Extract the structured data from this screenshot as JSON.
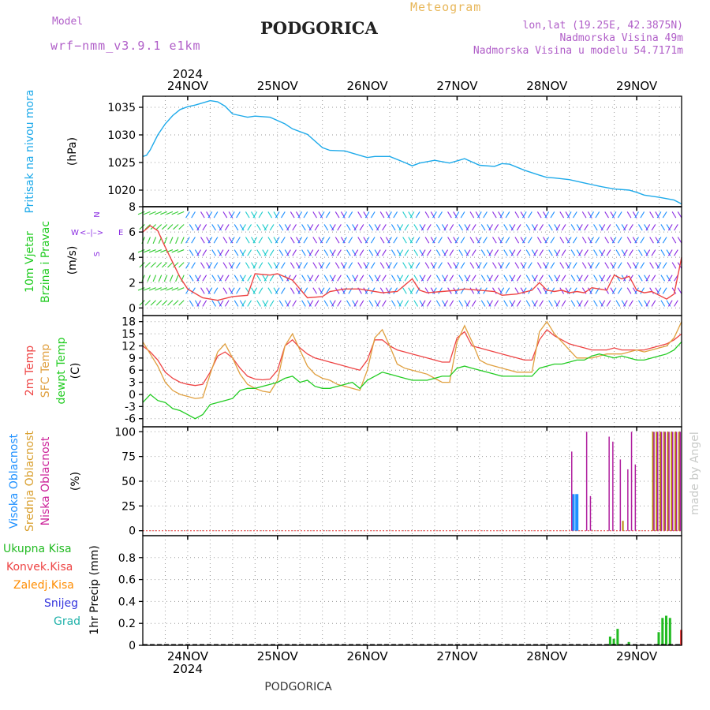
{
  "header": {
    "model_label": "Model",
    "model_name": "wrf−nmm_v3.9.1  e1km",
    "title": "PODGORICA",
    "product": "Meteogram",
    "lonlat": "lon,lat (19.25E, 42.3875N)",
    "altitude": "Nadmorska Visina 49m",
    "model_altitude": "Nadmorska Visina u modelu 54.7171m",
    "footer_station": "PODGORICA",
    "watermark": "made by Angel",
    "year_top": "2024",
    "year_bottom": "2024"
  },
  "colors": {
    "pressure": "#1eaaea",
    "temp2m": "#ee4444",
    "sfc": "#e0a040",
    "dew": "#22cc22",
    "cloud_high": "#1e90ff",
    "cloud_mid": "#b8860b",
    "cloud_low": "#b0209f",
    "precip_total": "#22bb22",
    "precip_conv": "#ee4444",
    "precip_frz": "#ff8c00",
    "snow": "#3333dd",
    "hail": "#20b2aa",
    "wind_purple": "#8a2be2",
    "wind_blue": "#1e8fff",
    "wind_cyan": "#1ccccc"
  },
  "days": [
    "24NOV",
    "25NOV",
    "26NOV",
    "27NOV",
    "28NOV",
    "29NOV"
  ],
  "panel_labels": {
    "pressure": [
      "Pritisak na nivou mora"
    ],
    "pressure_unit": "(hPa)",
    "wind": [
      "10m Vjetar",
      "Brzina i Pravac"
    ],
    "wind_unit": "(m/s)",
    "wind_compass": {
      "n": "N",
      "s": "S",
      "e": "E",
      "w": "W",
      "arrow": "<–|–>"
    },
    "temp": [
      "2m Temp",
      "SFC Temp",
      "dewpt Temp"
    ],
    "temp_unit": "(C)",
    "cloud": [
      "Visoka Oblacnost",
      "Srednja Oblacnost",
      "Niska Oblacnost"
    ],
    "cloud_unit": "(%)",
    "precip_legend": [
      "Ukupna Kisa",
      "Konvek.Kisa",
      "Zaledj.Kisa",
      "Snijeg",
      "Grad"
    ],
    "precip_unit": "1hr Precip (mm)"
  },
  "chart_data": [
    {
      "type": "line",
      "name": "pressure",
      "ylim": [
        1017,
        1037
      ],
      "yticks": [
        1020,
        1025,
        1030,
        1035
      ],
      "xlim": [
        0,
        144
      ],
      "series": [
        {
          "name": "Pritisak na nivou mora",
          "x": [
            0,
            1,
            2,
            4,
            6,
            8,
            10,
            12,
            14,
            16,
            18,
            20,
            22,
            24,
            26,
            28,
            30,
            34,
            38,
            40,
            44,
            48,
            50,
            54,
            58,
            60,
            62,
            66,
            70,
            72,
            74,
            78,
            82,
            84,
            86,
            90,
            94,
            96,
            98,
            102,
            106,
            108,
            110,
            114,
            118,
            120,
            122,
            126,
            130,
            132,
            134,
            138,
            142,
            144
          ],
          "y": [
            1026.1,
            1026.3,
            1027.3,
            1030,
            1032,
            1033.5,
            1034.6,
            1035.1,
            1035.4,
            1035.8,
            1036.2,
            1036.0,
            1035.2,
            1033.8,
            1033.5,
            1033.2,
            1033.4,
            1033.2,
            1032.0,
            1031.1,
            1030.1,
            1027.7,
            1027.2,
            1027.1,
            1026.3,
            1025.9,
            1026.1,
            1026.1,
            1025.0,
            1024.4,
            1024.9,
            1025.4,
            1024.9,
            1025.3,
            1025.7,
            1024.5,
            1024.3,
            1024.8,
            1024.7,
            1023.6,
            1022.7,
            1022.3,
            1022.2,
            1021.9,
            1021.3,
            1021.0,
            1020.7,
            1020.2,
            1020.0,
            1019.6,
            1019.1,
            1018.7,
            1018.2,
            1017.5
          ]
        }
      ]
    },
    {
      "type": "line",
      "name": "wind",
      "ylim": [
        -0.6,
        8
      ],
      "yticks": [
        0,
        2,
        4,
        6,
        8
      ],
      "xlim": [
        0,
        144
      ],
      "series": [
        {
          "name": "10m Vjetar",
          "x": [
            0,
            2,
            4,
            6,
            8,
            10,
            12,
            16,
            20,
            24,
            28,
            30,
            34,
            36,
            40,
            44,
            48,
            50,
            54,
            58,
            60,
            64,
            68,
            72,
            74,
            76,
            80,
            84,
            86,
            90,
            94,
            96,
            100,
            104,
            106,
            108,
            110,
            112,
            114,
            116,
            118,
            120,
            122,
            124,
            126,
            128,
            130,
            132,
            134,
            136,
            138,
            140,
            142,
            144
          ],
          "y": [
            6.0,
            6.5,
            6.1,
            4.8,
            3.6,
            2.4,
            1.5,
            0.8,
            0.6,
            0.9,
            1.0,
            2.7,
            2.6,
            2.7,
            2.2,
            0.8,
            0.9,
            1.3,
            1.5,
            1.5,
            1.4,
            1.2,
            1.3,
            2.3,
            1.4,
            1.2,
            1.3,
            1.4,
            1.5,
            1.4,
            1.3,
            1.0,
            1.1,
            1.4,
            2.0,
            1.4,
            1.3,
            1.4,
            1.2,
            1.3,
            1.2,
            1.6,
            1.5,
            1.4,
            2.6,
            2.3,
            2.5,
            1.4,
            1.2,
            1.3,
            1.0,
            0.7,
            1.1,
            4.0
          ]
        }
      ]
    },
    {
      "type": "line",
      "name": "temperature",
      "ylim": [
        -8,
        19.5
      ],
      "yticks": [
        -6,
        -3,
        0,
        3,
        6,
        9,
        12,
        15,
        18
      ],
      "xlim": [
        0,
        144
      ],
      "series": [
        {
          "name": "2m Temp",
          "x": [
            0,
            2,
            4,
            6,
            8,
            10,
            12,
            14,
            16,
            18,
            20,
            22,
            24,
            26,
            28,
            30,
            32,
            34,
            36,
            38,
            40,
            42,
            44,
            46,
            48,
            50,
            52,
            54,
            56,
            58,
            60,
            62,
            64,
            66,
            68,
            70,
            72,
            74,
            76,
            78,
            80,
            82,
            84,
            86,
            88,
            90,
            92,
            94,
            96,
            98,
            100,
            102,
            104,
            106,
            108,
            110,
            112,
            114,
            116,
            118,
            120,
            122,
            124,
            126,
            128,
            130,
            132,
            134,
            136,
            138,
            140,
            142,
            144
          ],
          "y": [
            12.0,
            10.5,
            8.5,
            5.5,
            4.0,
            3.0,
            2.5,
            2.2,
            2.5,
            5.5,
            9.5,
            10.5,
            9.0,
            6.5,
            4.5,
            3.8,
            3.6,
            3.8,
            6.0,
            12.0,
            13.5,
            11.5,
            10.0,
            9.0,
            8.5,
            8.0,
            7.5,
            7.0,
            6.5,
            6.0,
            8.5,
            13.5,
            13.5,
            12.0,
            11.0,
            10.5,
            10.0,
            9.5,
            9.0,
            8.5,
            8.0,
            8.0,
            14.0,
            15.5,
            12.0,
            11.5,
            11.0,
            10.5,
            10.0,
            9.5,
            9.0,
            8.5,
            8.5,
            13.5,
            16.0,
            14.5,
            13.5,
            12.5,
            12.0,
            11.5,
            11.0,
            11.0,
            11.0,
            11.5,
            11.0,
            11.0,
            11.0,
            11.0,
            11.5,
            12.0,
            12.5,
            13.5,
            15.0
          ]
        },
        {
          "name": "SFC Temp",
          "x": [
            0,
            2,
            4,
            6,
            8,
            10,
            12,
            14,
            16,
            18,
            20,
            22,
            24,
            26,
            28,
            30,
            32,
            34,
            36,
            38,
            40,
            42,
            44,
            46,
            48,
            50,
            52,
            54,
            56,
            58,
            60,
            62,
            64,
            66,
            68,
            70,
            72,
            74,
            76,
            78,
            80,
            82,
            84,
            86,
            88,
            90,
            92,
            94,
            96,
            98,
            100,
            102,
            104,
            106,
            108,
            110,
            112,
            114,
            116,
            118,
            120,
            122,
            124,
            126,
            128,
            130,
            132,
            134,
            136,
            138,
            140,
            142,
            144
          ],
          "y": [
            13.0,
            10.0,
            7.0,
            3.0,
            1.0,
            0.0,
            -0.5,
            -1.0,
            -0.8,
            5.0,
            10.5,
            12.5,
            9.0,
            5.0,
            2.5,
            1.5,
            0.8,
            0.5,
            3.5,
            12.0,
            15.0,
            11.0,
            7.0,
            5.0,
            4.0,
            3.5,
            2.5,
            2.0,
            1.5,
            1.0,
            6.0,
            14.0,
            16.0,
            12.0,
            7.5,
            6.5,
            6.0,
            5.5,
            5.0,
            4.0,
            3.0,
            3.0,
            13.0,
            17.0,
            13.0,
            8.5,
            7.5,
            7.0,
            6.5,
            6.0,
            5.5,
            5.5,
            5.5,
            15.5,
            18.0,
            15.0,
            13.0,
            11.0,
            9.0,
            9.0,
            9.0,
            9.5,
            10.0,
            10.0,
            10.0,
            10.5,
            11.0,
            10.5,
            11.0,
            11.5,
            12.0,
            14.0,
            18.0
          ]
        },
        {
          "name": "dewpt Temp",
          "x": [
            0,
            2,
            4,
            6,
            8,
            10,
            12,
            14,
            16,
            18,
            20,
            22,
            24,
            26,
            28,
            30,
            32,
            34,
            36,
            38,
            40,
            42,
            44,
            46,
            48,
            50,
            52,
            54,
            56,
            58,
            60,
            62,
            64,
            66,
            68,
            70,
            72,
            74,
            76,
            78,
            80,
            82,
            84,
            86,
            88,
            90,
            92,
            94,
            96,
            98,
            100,
            102,
            104,
            106,
            108,
            110,
            112,
            114,
            116,
            118,
            120,
            122,
            124,
            126,
            128,
            130,
            132,
            134,
            136,
            138,
            140,
            142,
            144
          ],
          "y": [
            -2.0,
            0.0,
            -1.5,
            -2.0,
            -3.5,
            -4.0,
            -5.0,
            -6.0,
            -5.0,
            -2.5,
            -2.0,
            -1.5,
            -1.0,
            1.0,
            1.5,
            1.5,
            2.0,
            2.5,
            3.0,
            4.0,
            4.5,
            3.0,
            3.5,
            2.0,
            1.5,
            1.5,
            2.0,
            2.5,
            3.0,
            1.5,
            3.5,
            4.5,
            5.5,
            5.0,
            4.5,
            4.0,
            3.5,
            3.5,
            3.5,
            4.0,
            4.5,
            4.5,
            6.5,
            7.0,
            6.5,
            6.0,
            5.5,
            5.0,
            4.5,
            4.5,
            4.5,
            4.5,
            4.5,
            6.5,
            7.0,
            7.5,
            7.5,
            8.0,
            8.5,
            8.5,
            9.5,
            10.0,
            9.5,
            9.0,
            9.5,
            9.0,
            8.5,
            8.5,
            9.0,
            9.5,
            10.0,
            11.0,
            13.0
          ]
        }
      ]
    },
    {
      "type": "bar",
      "name": "cloud_cover",
      "ylim": [
        -5,
        105
      ],
      "yticks": [
        0,
        25,
        50,
        75,
        100
      ],
      "xlim": [
        0,
        144
      ],
      "series": [
        {
          "name": "Visoka Oblacnost",
          "x": [
            115,
            116
          ],
          "y": [
            37,
            37
          ]
        },
        {
          "name": "Srednja Oblacnost",
          "x": [
            128,
            136,
            137,
            138,
            139,
            140,
            141,
            142,
            143
          ],
          "y": [
            10,
            100,
            100,
            100,
            100,
            100,
            100,
            100,
            100
          ]
        },
        {
          "name": "Niska Oblacnost",
          "x": [
            114,
            118,
            119,
            124,
            125,
            127,
            129,
            130,
            131,
            132,
            133,
            134,
            135,
            136,
            137,
            138,
            139,
            140,
            141,
            142,
            143
          ],
          "y": [
            80,
            100,
            35,
            95,
            90,
            72,
            62,
            100,
            67,
            0,
            0,
            0,
            0,
            100,
            100,
            100,
            100,
            100,
            100,
            100,
            100
          ]
        }
      ]
    },
    {
      "type": "bar",
      "name": "precipitation",
      "ylim": [
        0,
        1.0
      ],
      "yticks": [
        0,
        0.2,
        0.4,
        0.6,
        0.8
      ],
      "xlim": [
        0,
        144
      ],
      "series": [
        {
          "name": "Ukupna Kisa",
          "x": [
            125,
            126,
            127,
            130,
            138,
            139,
            140,
            141
          ],
          "y": [
            0.08,
            0.06,
            0.15,
            0.03,
            0.12,
            0.25,
            0.27,
            0.25
          ]
        },
        {
          "name": "Konvek.Kisa",
          "x": [
            144
          ],
          "y": [
            0.14
          ]
        },
        {
          "name": "Zaledj.Kisa",
          "x": [],
          "y": []
        },
        {
          "name": "Snijeg",
          "x": [],
          "y": []
        },
        {
          "name": "Grad",
          "x": [],
          "y": []
        }
      ]
    }
  ]
}
